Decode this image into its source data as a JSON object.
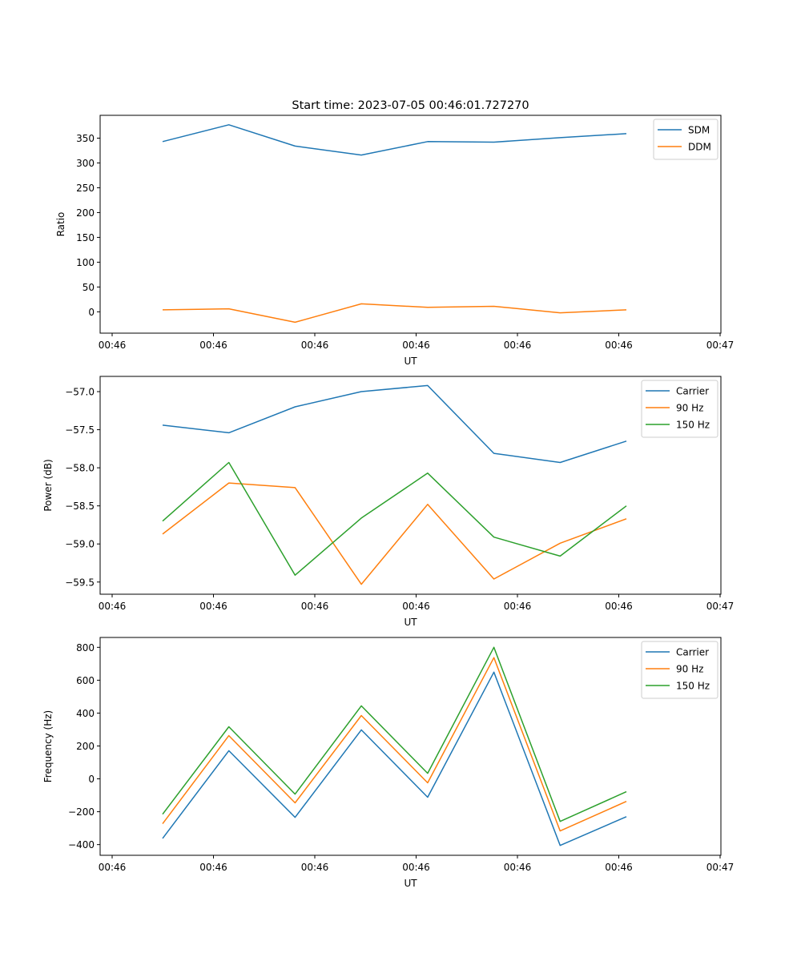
{
  "figure_title": "Start time: 2023-07-05 00:46:01.727270",
  "chart_data": [
    {
      "type": "line",
      "title": "Start time: 2023-07-05 00:46:01.727270",
      "xlabel": "UT",
      "ylabel": "Ratio",
      "x_tick_labels": [
        "00:46",
        "00:46",
        "00:46",
        "00:46",
        "00:46",
        "00:46",
        "00:47"
      ],
      "y_ticks": [
        0,
        50,
        100,
        150,
        200,
        250,
        300,
        350
      ],
      "y_tick_labels": [
        "0",
        "50",
        "100",
        "150",
        "200",
        "250",
        "300",
        "350"
      ],
      "ylim": [
        -43,
        396
      ],
      "x_index": [
        1,
        2,
        3,
        4,
        5,
        6,
        7,
        8
      ],
      "legend_position": "top-right",
      "series": [
        {
          "name": "SDM",
          "color": "#1f77b4",
          "values": [
            343,
            377,
            334,
            316,
            343,
            342,
            351,
            359
          ]
        },
        {
          "name": "DDM",
          "color": "#ff7f0e",
          "values": [
            4,
            6,
            -21,
            16,
            9,
            11,
            -2,
            4
          ]
        }
      ]
    },
    {
      "type": "line",
      "title": "",
      "xlabel": "UT",
      "ylabel": "Power (dB)",
      "x_tick_labels": [
        "00:46",
        "00:46",
        "00:46",
        "00:46",
        "00:46",
        "00:46",
        "00:47"
      ],
      "y_ticks": [
        -57.0,
        -57.5,
        -58.0,
        -58.5,
        -59.0,
        -59.5
      ],
      "y_tick_labels": [
        "−57.0",
        "−57.5",
        "−58.0",
        "−58.5",
        "−59.0",
        "−59.5"
      ],
      "ylim": [
        -59.66,
        -56.8
      ],
      "x_index": [
        1,
        2,
        3,
        4,
        5,
        6,
        7,
        8
      ],
      "legend_position": "top-right",
      "series": [
        {
          "name": "Carrier",
          "color": "#1f77b4",
          "values": [
            -57.44,
            -57.54,
            -57.2,
            -57.0,
            -56.92,
            -57.81,
            -57.93,
            -57.65
          ]
        },
        {
          "name": "90 Hz",
          "color": "#ff7f0e",
          "values": [
            -58.87,
            -58.2,
            -58.26,
            -59.53,
            -58.48,
            -59.46,
            -58.99,
            -58.67
          ]
        },
        {
          "name": "150 Hz",
          "color": "#2ca02c",
          "values": [
            -58.7,
            -57.93,
            -59.41,
            -58.66,
            -58.07,
            -58.91,
            -59.16,
            -58.5
          ]
        }
      ]
    },
    {
      "type": "line",
      "title": "",
      "xlabel": "UT",
      "ylabel": "Frequency (Hz)",
      "x_tick_labels": [
        "00:46",
        "00:46",
        "00:46",
        "00:46",
        "00:46",
        "00:46",
        "00:47"
      ],
      "y_ticks": [
        800,
        600,
        400,
        200,
        0,
        -200,
        -400
      ],
      "y_tick_labels": [
        "800",
        "600",
        "400",
        "200",
        "0",
        "−200",
        "−400"
      ],
      "ylim": [
        -465,
        860
      ],
      "x_index": [
        1,
        2,
        3,
        4,
        5,
        6,
        7,
        8
      ],
      "legend_position": "top-right",
      "series": [
        {
          "name": "Carrier",
          "color": "#1f77b4",
          "values": [
            -362,
            171,
            -234,
            298,
            -112,
            649,
            -405,
            -230
          ]
        },
        {
          "name": "90 Hz",
          "color": "#ff7f0e",
          "values": [
            -273,
            263,
            -146,
            385,
            -24,
            737,
            -317,
            -137
          ]
        },
        {
          "name": "150 Hz",
          "color": "#2ca02c",
          "values": [
            -215,
            317,
            -93,
            444,
            34,
            800,
            -259,
            -78
          ]
        }
      ]
    }
  ]
}
